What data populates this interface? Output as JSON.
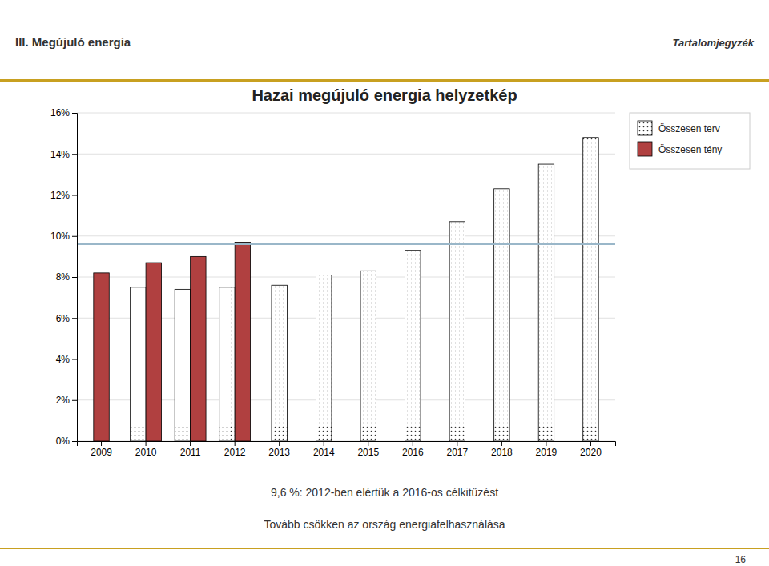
{
  "chart_data": {
    "type": "bar",
    "title": "Hazai megújuló energia helyzetkép",
    "annotations": [
      "III. Megújuló energia",
      "Tartalomjegyzék",
      "9,6 %: 2012-ben elértük a 2016-os célkitűzést",
      "Tovább csökken az ország energiafelhasználása",
      "16"
    ],
    "categories": [
      "2009",
      "2010",
      "2011",
      "2012",
      "2013",
      "2014",
      "2015",
      "2016",
      "2017",
      "2018",
      "2019",
      "2020"
    ],
    "series": [
      {
        "name": "Összesen terv",
        "color": "#ffffff",
        "values": [
          null,
          0.075,
          0.074,
          0.075,
          0.076,
          0.081,
          0.083,
          0.093,
          0.107,
          0.123,
          0.135,
          0.148
        ]
      },
      {
        "name": "Összesen tény",
        "color": "#b04040",
        "values": [
          0.082,
          0.087,
          0.09,
          0.097,
          null,
          null,
          null,
          null,
          null,
          null,
          null,
          null
        ]
      }
    ],
    "reference_lines": [
      {
        "value": 0.096,
        "color": "#9ab7c9"
      }
    ],
    "ylim": [
      0,
      0.16
    ],
    "yticks": [
      {
        "value": 0,
        "label": "0%"
      },
      {
        "value": 0.02,
        "label": "2%"
      },
      {
        "value": 0.04,
        "label": "4%"
      },
      {
        "value": 0.06,
        "label": "6%"
      },
      {
        "value": 0.08,
        "label": "8%"
      },
      {
        "value": 0.1,
        "label": "10%"
      },
      {
        "value": 0.12,
        "label": "12%"
      },
      {
        "value": 0.14,
        "label": "14%"
      },
      {
        "value": 0.16,
        "label": "16%"
      }
    ],
    "grid": true,
    "legend": "right"
  }
}
